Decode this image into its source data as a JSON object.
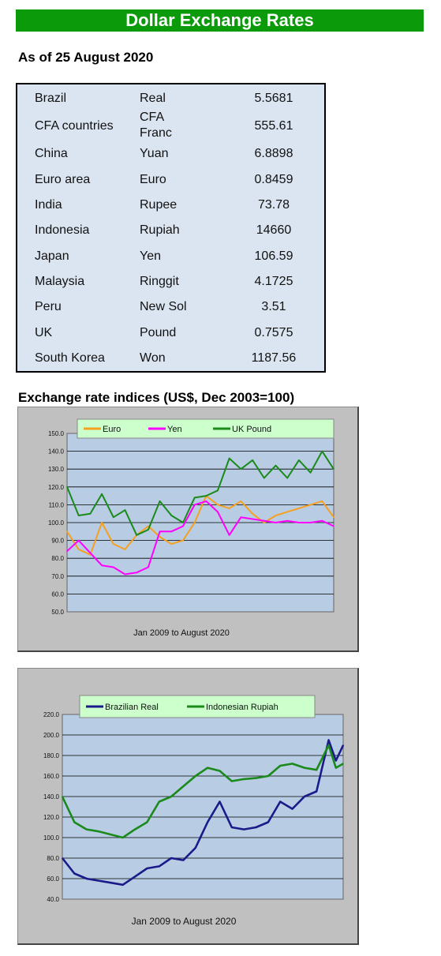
{
  "header": {
    "title": "Dollar Exchange Rates",
    "as_of": "As of 25 August 2020"
  },
  "rates": [
    {
      "country": "Brazil",
      "currency": "Real",
      "value": "5.5681"
    },
    {
      "country": "CFA countries",
      "currency": "CFA Franc",
      "value": "555.61"
    },
    {
      "country": "China",
      "currency": "Yuan",
      "value": "6.8898"
    },
    {
      "country": "Euro area",
      "currency": "Euro",
      "value": "0.8459"
    },
    {
      "country": "India",
      "currency": "Rupee",
      "value": "73.78"
    },
    {
      "country": "Indonesia",
      "currency": "Rupiah",
      "value": "14660"
    },
    {
      "country": "Japan",
      "currency": "Yen",
      "value": "106.59"
    },
    {
      "country": "Malaysia",
      "currency": "Ringgit",
      "value": "4.1725"
    },
    {
      "country": "Peru",
      "currency": "New Sol",
      "value": "3.51"
    },
    {
      "country": "UK",
      "currency": "Pound",
      "value": "0.7575"
    },
    {
      "country": "South Korea",
      "currency": "Won",
      "value": "1187.56"
    }
  ],
  "indices_title": "Exchange rate indices (US$, Dec 2003=100)",
  "chart_data": [
    {
      "type": "line",
      "caption": "Jan 2009  to August 2020",
      "ylim": [
        50,
        150
      ],
      "yticks": [
        "150.0",
        "140.0",
        "130.0",
        "120.0",
        "110.0",
        "100.0",
        "90.0",
        "80.0",
        "70.0",
        "60.0",
        "50.0"
      ],
      "grid": true,
      "legend_position": "top",
      "x": [
        2009.0,
        2009.5,
        2010.0,
        2010.5,
        2011.0,
        2011.5,
        2012.0,
        2012.5,
        2013.0,
        2013.5,
        2014.0,
        2014.5,
        2015.0,
        2015.5,
        2016.0,
        2016.5,
        2017.0,
        2017.5,
        2018.0,
        2018.5,
        2019.0,
        2019.5,
        2020.0,
        2020.5
      ],
      "series": [
        {
          "name": "Euro",
          "color": "#f5a020",
          "values": [
            95,
            85,
            82,
            100,
            88,
            85,
            93,
            98,
            92,
            88,
            90,
            100,
            115,
            110,
            108,
            112,
            105,
            100,
            104,
            106,
            108,
            110,
            112,
            103
          ]
        },
        {
          "name": "Yen",
          "color": "#ff00ff",
          "values": [
            84,
            90,
            83,
            76,
            75,
            71,
            72,
            75,
            95,
            95,
            98,
            110,
            112,
            106,
            93,
            103,
            102,
            101,
            100,
            101,
            100,
            100,
            101,
            98
          ]
        },
        {
          "name": "UK Pound",
          "color": "#1a8a1a",
          "values": [
            120,
            104,
            105,
            116,
            103,
            107,
            93,
            96,
            112,
            104,
            100,
            114,
            115,
            118,
            136,
            130,
            135,
            125,
            132,
            125,
            135,
            128,
            140,
            130
          ]
        }
      ]
    },
    {
      "type": "line",
      "caption": "Jan 2009  to August 2020",
      "ylim": [
        40,
        220
      ],
      "yticks": [
        "220.0",
        "200.0",
        "180.0",
        "160.0",
        "140.0",
        "120.0",
        "100.0",
        "80.0",
        "60.0",
        "40.0"
      ],
      "grid": true,
      "legend_position": "top",
      "x": [
        2009.0,
        2009.5,
        2010.0,
        2010.5,
        2011.0,
        2011.5,
        2012.0,
        2012.5,
        2013.0,
        2013.5,
        2014.0,
        2014.5,
        2015.0,
        2015.5,
        2016.0,
        2016.5,
        2017.0,
        2017.5,
        2018.0,
        2018.5,
        2019.0,
        2019.5,
        2020.0,
        2020.3,
        2020.6
      ],
      "series": [
        {
          "name": "Brazilian Real",
          "color": "#1a1a8a",
          "values": [
            80,
            65,
            60,
            58,
            56,
            54,
            62,
            70,
            72,
            80,
            78,
            90,
            115,
            135,
            110,
            108,
            110,
            115,
            135,
            128,
            140,
            145,
            195,
            175,
            190
          ]
        },
        {
          "name": "Indonesian Rupiah",
          "color": "#1a8a1a",
          "values": [
            140,
            115,
            108,
            106,
            103,
            100,
            108,
            115,
            135,
            140,
            150,
            160,
            168,
            165,
            155,
            157,
            158,
            160,
            170,
            172,
            168,
            166,
            190,
            168,
            172
          ]
        }
      ]
    }
  ]
}
